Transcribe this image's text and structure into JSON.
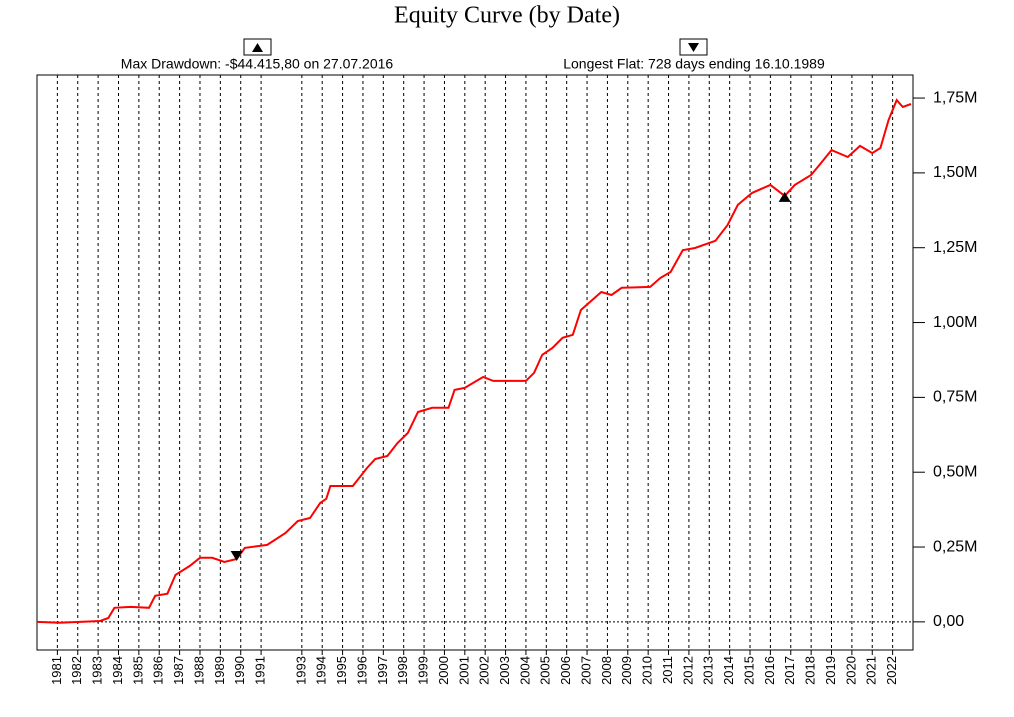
{
  "chart_data": {
    "type": "line",
    "title": "Equity Curve (by Date)",
    "annotations": [
      "Max Drawdown: -$44.415,80 on 27.07.2016",
      "Longest Flat: 728 days ending 16.10.1989"
    ],
    "x": [
      1980.0,
      1981.1,
      1983.1,
      1983.5,
      1983.8,
      1984.6,
      1985.5,
      1985.8,
      1986.4,
      1986.8,
      1987.5,
      1988.0,
      1988.6,
      1989.2,
      1989.8,
      1990.2,
      1991.3,
      1992.2,
      1992.8,
      1993.4,
      1993.9,
      1994.2,
      1994.4,
      1995.5,
      1996.2,
      1996.6,
      1997.2,
      1997.7,
      1998.2,
      1998.7,
      1999.4,
      2000.2,
      2000.5,
      2001.0,
      2001.9,
      2002.4,
      2004.0,
      2004.4,
      2004.8,
      2005.3,
      2005.8,
      2006.3,
      2006.7,
      2007.1,
      2007.7,
      2008.2,
      2008.7,
      2010.1,
      2010.6,
      2011.1,
      2011.7,
      2012.3,
      2013.3,
      2013.9,
      2014.4,
      2015.1,
      2016.0,
      2016.7,
      2017.2,
      2018.0,
      2018.4,
      2019.0,
      2019.8,
      2020.4,
      2021.0,
      2021.4,
      2021.8,
      2022.2,
      2022.5,
      2022.9
    ],
    "series": [
      {
        "name": "Equity",
        "color": "#ff0000",
        "values": [
          0,
          -3000,
          3000,
          13000,
          47000,
          50000,
          47000,
          87000,
          94000,
          157000,
          187000,
          214000,
          214000,
          200000,
          210000,
          247000,
          257000,
          297000,
          337000,
          347000,
          397000,
          411000,
          454000,
          454000,
          514000,
          544000,
          554000,
          598000,
          631000,
          701000,
          715000,
          715000,
          775000,
          782000,
          818000,
          805000,
          805000,
          832000,
          892000,
          915000,
          949000,
          959000,
          1042000,
          1066000,
          1102000,
          1092000,
          1116000,
          1119000,
          1149000,
          1169000,
          1242000,
          1249000,
          1273000,
          1326000,
          1393000,
          1433000,
          1460000,
          1423000,
          1460000,
          1493000,
          1526000,
          1576000,
          1553000,
          1590000,
          1566000,
          1583000,
          1677000,
          1743000,
          1720000,
          1730000
        ]
      }
    ],
    "markers": [
      {
        "x": 1989.8,
        "y": 210000,
        "direction": "down"
      },
      {
        "x": 2016.7,
        "y": 1423000,
        "direction": "up"
      }
    ],
    "xlim": [
      1980.0,
      2023.0
    ],
    "xticks": [
      1981,
      1982,
      1983,
      1984,
      1985,
      1986,
      1987,
      1988,
      1989,
      1990,
      1991,
      1993,
      1994,
      1995,
      1996,
      1997,
      1998,
      1999,
      2000,
      2001,
      2002,
      2003,
      2004,
      2005,
      2006,
      2007,
      2008,
      2009,
      2010,
      2011,
      2012,
      2013,
      2014,
      2015,
      2016,
      2017,
      2018,
      2019,
      2020,
      2021,
      2022
    ],
    "ylim": [
      -94000,
      1827000
    ],
    "yticks": [
      {
        "value": 0,
        "label": "0,00"
      },
      {
        "value": 250000,
        "label": "0,25M"
      },
      {
        "value": 500000,
        "label": "0,50M"
      },
      {
        "value": 750000,
        "label": "0,75M"
      },
      {
        "value": 1000000,
        "label": "1,00M"
      },
      {
        "value": 1250000,
        "label": "1,25M"
      },
      {
        "value": 1500000,
        "label": "1,50M"
      },
      {
        "value": 1750000,
        "label": "1,75M"
      }
    ],
    "grid": true,
    "zero_line": true
  }
}
